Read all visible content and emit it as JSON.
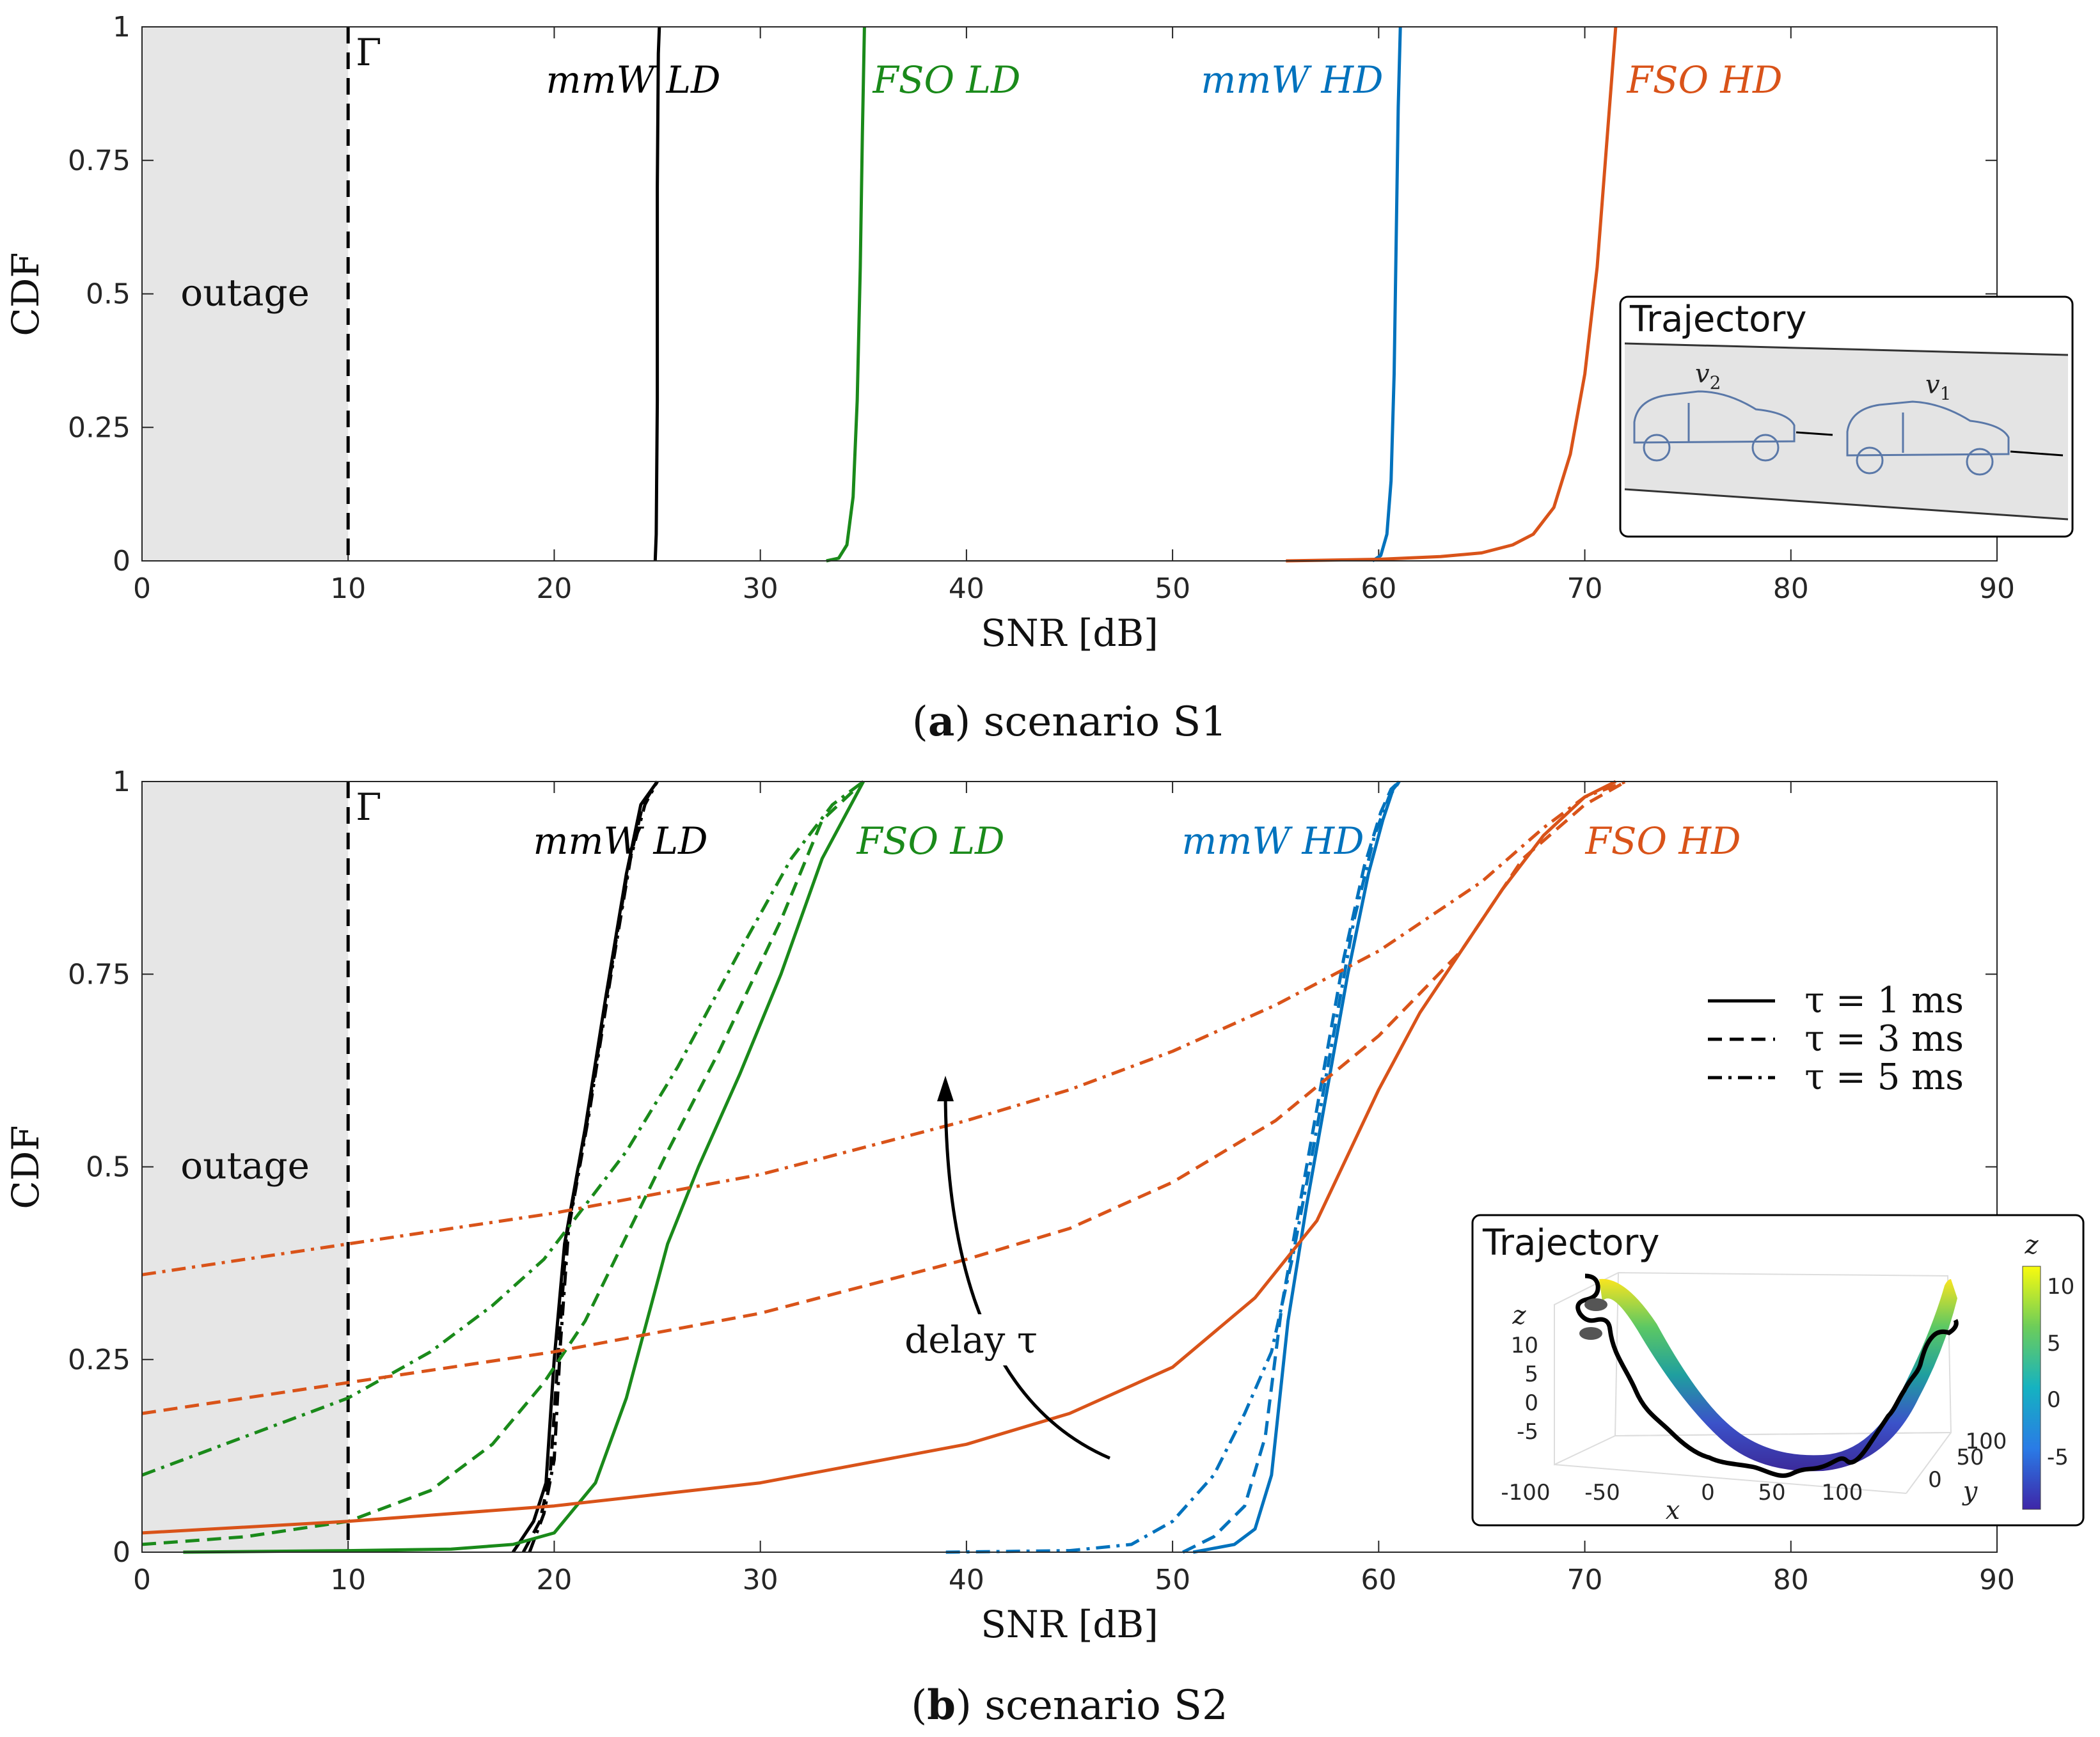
{
  "colors": {
    "mmw_ld": "#000000",
    "fso_ld": "#1a8a1a",
    "mmw_hd": "#0072bd",
    "fso_hd": "#d95319",
    "outage": "#e6e6e6"
  },
  "chart_data": [
    {
      "type": "line",
      "caption_letter": "a",
      "caption_text": ") scenario S1",
      "caption_open": "(",
      "xlabel": "SNR [dB]",
      "ylabel": "CDF",
      "xlim": [
        0,
        90
      ],
      "ylim": [
        0,
        1
      ],
      "xticks": [
        "0",
        "10",
        "20",
        "30",
        "40",
        "50",
        "60",
        "70",
        "80",
        "90"
      ],
      "yticks": [
        "0",
        "0.25",
        "0.5",
        "0.75",
        "1"
      ],
      "threshold_label": "Γ",
      "threshold_x": 10,
      "outage_label": "outage",
      "series": [
        {
          "name": "mmW LD",
          "style": "solid",
          "x": [
            24.9,
            24.95,
            25.0,
            25.0,
            25.05,
            25.1
          ],
          "y": [
            0,
            0.05,
            0.3,
            0.7,
            0.95,
            1
          ]
        },
        {
          "name": "FSO LD",
          "style": "solid",
          "x": [
            33.2,
            33.8,
            34.2,
            34.5,
            34.7,
            34.85,
            34.95,
            35.05
          ],
          "y": [
            0,
            0.005,
            0.03,
            0.12,
            0.3,
            0.55,
            0.8,
            1
          ]
        },
        {
          "name": "mmW HD",
          "style": "solid",
          "x": [
            59.7,
            60.1,
            60.4,
            60.6,
            60.75,
            60.85,
            60.95,
            61.05
          ],
          "y": [
            0,
            0.01,
            0.05,
            0.15,
            0.35,
            0.6,
            0.85,
            1
          ]
        },
        {
          "name": "FSO HD",
          "style": "solid",
          "x": [
            55.5,
            60,
            63,
            65,
            66.5,
            67.5,
            68.5,
            69.3,
            70,
            70.6,
            71.1,
            71.5
          ],
          "y": [
            0,
            0.003,
            0.008,
            0.015,
            0.03,
            0.05,
            0.1,
            0.2,
            0.35,
            0.55,
            0.8,
            1
          ]
        }
      ],
      "inset": {
        "title": "Trajectory",
        "vehicle_labels": [
          "v",
          "2",
          "v",
          "1"
        ]
      }
    },
    {
      "type": "line",
      "caption_letter": "b",
      "caption_text": ") scenario S2",
      "caption_open": "(",
      "xlabel": "SNR [dB]",
      "ylabel": "CDF",
      "xlim": [
        0,
        90
      ],
      "ylim": [
        0,
        1
      ],
      "xticks": [
        "0",
        "10",
        "20",
        "30",
        "40",
        "50",
        "60",
        "70",
        "80",
        "90"
      ],
      "yticks": [
        "0",
        "0.25",
        "0.5",
        "0.75",
        "1"
      ],
      "threshold_label": "Γ",
      "threshold_x": 10,
      "outage_label": "outage",
      "arrow_label": "delay τ",
      "legend": [
        {
          "style": "solid",
          "label": "τ = 1 ms"
        },
        {
          "style": "dashed",
          "label": "τ = 3 ms"
        },
        {
          "style": "dashdot",
          "label": "τ = 5 ms"
        }
      ],
      "series_labels": [
        "mmW LD",
        "FSO LD",
        "mmW HD",
        "FSO HD"
      ],
      "series": [
        {
          "name": "mmW LD τ=1",
          "group": "mmW LD",
          "style": "solid",
          "x": [
            18,
            19,
            19.6,
            20,
            20.5,
            21.5,
            22.5,
            23.5,
            24.2,
            25
          ],
          "y": [
            0,
            0.04,
            0.09,
            0.25,
            0.4,
            0.55,
            0.72,
            0.88,
            0.97,
            1
          ]
        },
        {
          "name": "mmW LD τ=3",
          "group": "mmW LD",
          "style": "dashed",
          "x": [
            18.5,
            19.3,
            19.8,
            20.2,
            20.6,
            21.6,
            22.6,
            23.6,
            24.3,
            25
          ],
          "y": [
            0,
            0.04,
            0.1,
            0.26,
            0.41,
            0.56,
            0.73,
            0.89,
            0.97,
            1
          ]
        },
        {
          "name": "mmW LD τ=5",
          "group": "mmW LD",
          "style": "dashdot",
          "x": [
            18.8,
            19.5,
            20,
            20.3,
            20.7,
            21.7,
            22.7,
            23.7,
            24.4,
            25
          ],
          "y": [
            0,
            0.05,
            0.12,
            0.27,
            0.42,
            0.57,
            0.74,
            0.9,
            0.97,
            1
          ]
        },
        {
          "name": "FSO LD τ=1",
          "group": "FSO LD",
          "style": "solid",
          "x": [
            2,
            10,
            15,
            18,
            20,
            22,
            23.5,
            24.5,
            25.5,
            27,
            29,
            31,
            33,
            35
          ],
          "y": [
            0,
            0.002,
            0.004,
            0.01,
            0.025,
            0.09,
            0.2,
            0.3,
            0.4,
            0.5,
            0.62,
            0.75,
            0.9,
            1
          ]
        },
        {
          "name": "FSO LD τ=3",
          "group": "FSO LD",
          "style": "dashed",
          "x": [
            0,
            5,
            10,
            14,
            17,
            19.5,
            21.5,
            23.5,
            25.5,
            28,
            31,
            33,
            35
          ],
          "y": [
            0.01,
            0.02,
            0.04,
            0.08,
            0.14,
            0.22,
            0.3,
            0.41,
            0.52,
            0.65,
            0.82,
            0.95,
            1
          ]
        },
        {
          "name": "FSO LD τ=5",
          "group": "FSO LD",
          "style": "dashdot",
          "x": [
            0,
            5,
            10,
            14,
            17,
            19.5,
            21.5,
            23.5,
            26,
            29,
            31.5,
            33.5,
            35
          ],
          "y": [
            0.1,
            0.15,
            0.2,
            0.26,
            0.32,
            0.38,
            0.45,
            0.52,
            0.63,
            0.78,
            0.9,
            0.97,
            1
          ]
        },
        {
          "name": "mmW HD τ=1",
          "group": "mmW HD",
          "style": "solid",
          "x": [
            51,
            53,
            54,
            54.8,
            55.6,
            56.5,
            57.5,
            58.5,
            59.5,
            60.2,
            60.7,
            61
          ],
          "y": [
            0,
            0.01,
            0.03,
            0.1,
            0.3,
            0.45,
            0.6,
            0.75,
            0.88,
            0.95,
            0.99,
            1
          ]
        },
        {
          "name": "mmW HD τ=3",
          "group": "mmW HD",
          "style": "dashed",
          "x": [
            50.5,
            52,
            53.5,
            54.5,
            55.3,
            56.3,
            57.3,
            58.3,
            59.3,
            60.1,
            60.6,
            61
          ],
          "y": [
            0,
            0.02,
            0.06,
            0.15,
            0.32,
            0.47,
            0.62,
            0.77,
            0.89,
            0.96,
            0.99,
            1
          ]
        },
        {
          "name": "mmW HD τ=5",
          "group": "mmW HD",
          "style": "dashdot",
          "x": [
            39,
            45,
            48,
            50,
            52,
            53.5,
            54.8,
            55.8,
            56.8,
            57.8,
            58.8,
            59.8,
            60.5,
            61
          ],
          "y": [
            0,
            0.002,
            0.01,
            0.04,
            0.1,
            0.18,
            0.26,
            0.38,
            0.52,
            0.67,
            0.82,
            0.93,
            0.98,
            1
          ]
        },
        {
          "name": "FSO HD τ=1",
          "group": "FSO HD",
          "style": "solid",
          "x": [
            0,
            10,
            20,
            30,
            40,
            45,
            50,
            54,
            57,
            60,
            62,
            64,
            66,
            68,
            70,
            71.5
          ],
          "y": [
            0.025,
            0.04,
            0.06,
            0.09,
            0.14,
            0.18,
            0.24,
            0.33,
            0.43,
            0.6,
            0.7,
            0.78,
            0.86,
            0.93,
            0.98,
            1
          ]
        },
        {
          "name": "FSO HD τ=3",
          "group": "FSO HD",
          "style": "dashed",
          "x": [
            0,
            10,
            20,
            30,
            40,
            45,
            50,
            55,
            60,
            64,
            67,
            70,
            72
          ],
          "y": [
            0.18,
            0.22,
            0.26,
            0.31,
            0.38,
            0.42,
            0.48,
            0.56,
            0.67,
            0.78,
            0.9,
            0.97,
            1
          ]
        },
        {
          "name": "FSO HD τ=5",
          "group": "FSO HD",
          "style": "dashdot",
          "x": [
            0,
            10,
            20,
            30,
            40,
            45,
            50,
            55,
            60,
            65,
            68,
            70,
            72
          ],
          "y": [
            0.36,
            0.4,
            0.44,
            0.49,
            0.56,
            0.6,
            0.65,
            0.71,
            0.78,
            0.87,
            0.94,
            0.98,
            1
          ]
        }
      ],
      "inset": {
        "title": "Trajectory",
        "colorbar_label": "z",
        "colorbar_ticks": [
          "10",
          "5",
          "0",
          "-5"
        ],
        "z_label": "z",
        "z_ticks": [
          "10",
          "5",
          "0",
          "-5"
        ],
        "x_label": "x",
        "x_ticks": [
          "-100",
          "-50",
          "0",
          "50",
          "100"
        ],
        "y_label": "y",
        "y_ticks": [
          "100",
          "50",
          "0"
        ]
      }
    }
  ]
}
